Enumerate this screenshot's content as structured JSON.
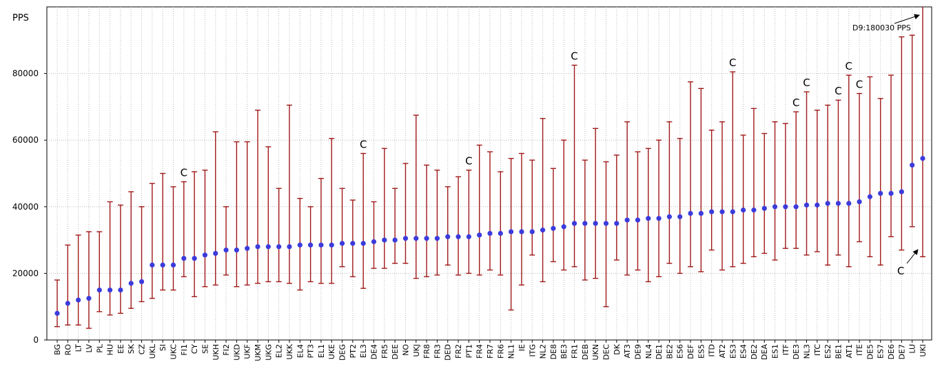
{
  "chart_data": {
    "type": "errorbar",
    "y_label": "PPS",
    "categories": [
      "BG",
      "RO",
      "LT",
      "LV",
      "PL",
      "HU",
      "EE",
      "SK",
      "CZ",
      "UKL",
      "SI",
      "UKC",
      "FI1",
      "CY",
      "SE",
      "UKH",
      "FI2",
      "UKD",
      "UKF",
      "UKM",
      "UKG",
      "EL2",
      "UKK",
      "EL4",
      "PT3",
      "EL1",
      "UKE",
      "DEG",
      "PT2",
      "EL3",
      "DE4",
      "FR5",
      "DEE",
      "NO",
      "UKJ",
      "FR8",
      "FR3",
      "DED",
      "FR2",
      "PT1",
      "FR4",
      "FR7",
      "FR6",
      "NL1",
      "IE",
      "ITG",
      "NL2",
      "DE8",
      "BE3",
      "FR1",
      "DEB",
      "UKN",
      "DEC",
      "DK",
      "AT3",
      "DE9",
      "NL4",
      "DE1",
      "BE2",
      "ES6",
      "DEF",
      "ES5",
      "ITD",
      "AT2",
      "ES3",
      "ES4",
      "DE2",
      "DEA",
      "ES1",
      "ITF",
      "DE3",
      "NL3",
      "ITC",
      "ES2",
      "BE1",
      "AT1",
      "ITE",
      "DE5",
      "ES7",
      "DE6",
      "DE7",
      "LU",
      "UKI"
    ],
    "values": [
      8000,
      11000,
      12000,
      12500,
      15000,
      15000,
      15000,
      17000,
      17500,
      22500,
      22500,
      22500,
      24500,
      24500,
      25500,
      26000,
      27000,
      27000,
      27500,
      28000,
      28000,
      28000,
      28000,
      28500,
      28500,
      28500,
      28500,
      29000,
      29000,
      29000,
      29500,
      30000,
      30000,
      30500,
      30500,
      30500,
      30500,
      31000,
      31000,
      31000,
      31500,
      32000,
      32000,
      32500,
      32500,
      32500,
      33000,
      33500,
      34000,
      35000,
      35000,
      35000,
      35000,
      35000,
      36000,
      36000,
      36500,
      36500,
      37000,
      37000,
      38000,
      38000,
      38500,
      38500,
      38500,
      39000,
      39000,
      39500,
      40000,
      40000,
      40000,
      40500,
      40500,
      41000,
      41000,
      41000,
      41500,
      43000,
      44000,
      44000,
      44500,
      52500,
      54500
    ],
    "low": [
      4000,
      4500,
      4500,
      3500,
      8500,
      7500,
      8000,
      9500,
      11500,
      12500,
      15000,
      15000,
      19000,
      13000,
      16000,
      16500,
      19500,
      16000,
      16500,
      17000,
      17500,
      17500,
      17000,
      15000,
      17500,
      17000,
      17000,
      22000,
      19000,
      15500,
      21500,
      21500,
      23000,
      23000,
      18500,
      19000,
      19500,
      22500,
      19500,
      20000,
      19500,
      21000,
      19500,
      9000,
      16500,
      25500,
      17500,
      23500,
      21000,
      22000,
      18000,
      18500,
      10000,
      24000,
      19500,
      21000,
      17500,
      19000,
      23000,
      20000,
      22000,
      20500,
      27000,
      21000,
      22000,
      23000,
      25000,
      26000,
      24000,
      27500,
      27500,
      25500,
      26500,
      22500,
      25500,
      22000,
      29500,
      25000,
      22500,
      31000,
      27000,
      34000,
      25000
    ],
    "high": [
      18000,
      28500,
      31500,
      32500,
      32500,
      41500,
      40500,
      44500,
      40000,
      47000,
      50000,
      46000,
      47500,
      50500,
      51000,
      62500,
      40000,
      59500,
      59500,
      69000,
      58000,
      45500,
      70500,
      42500,
      40000,
      48500,
      60500,
      45500,
      42000,
      56000,
      41500,
      57500,
      45500,
      53000,
      67500,
      52500,
      51000,
      46000,
      49000,
      51000,
      58500,
      56500,
      50500,
      54500,
      56000,
      54000,
      66500,
      51500,
      60000,
      82500,
      54000,
      63500,
      53500,
      55500,
      65500,
      56500,
      57500,
      60000,
      65500,
      60500,
      77500,
      75500,
      63000,
      65500,
      80500,
      61500,
      69500,
      62000,
      65500,
      65000,
      68500,
      74500,
      69000,
      70500,
      72000,
      79500,
      74000,
      79000,
      72500,
      79500,
      91000,
      91500,
      180030
    ],
    "ylim": [
      0,
      100000
    ],
    "yticks": [
      0,
      20000,
      40000,
      60000,
      80000
    ],
    "grid": true,
    "point_color": "#3b3bdc",
    "bar_color": "#a01818",
    "annotations": [
      {
        "text": "C",
        "at": "FI1"
      },
      {
        "text": "C",
        "at": "EL3"
      },
      {
        "text": "C",
        "at": "PT1"
      },
      {
        "text": "C",
        "at": "FR1"
      },
      {
        "text": "C",
        "at": "ES3"
      },
      {
        "text": "C",
        "at": "DE3"
      },
      {
        "text": "C",
        "at": "NL3"
      },
      {
        "text": "C",
        "at": "BE1"
      },
      {
        "text": "C",
        "at": "AT1"
      },
      {
        "text": "C",
        "at": "ITE"
      }
    ],
    "top_note": "D9:180030 PPS",
    "bottom_note": "C"
  }
}
